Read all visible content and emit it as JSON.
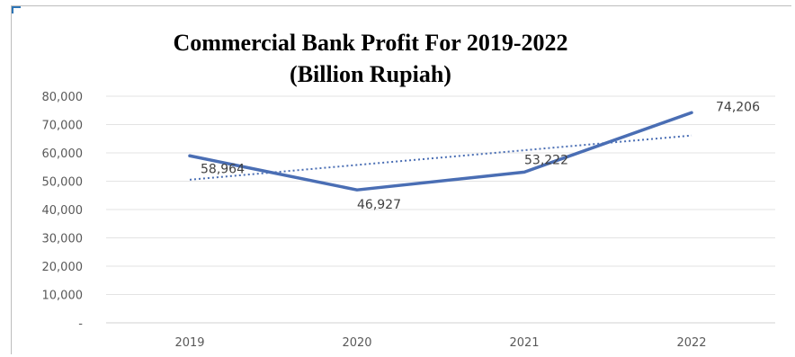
{
  "chart_data": {
    "type": "line",
    "title": "Commercial Bank Profit For 2019-2022",
    "subtitle": "(Billion Rupiah)",
    "categories": [
      "2019",
      "2020",
      "2021",
      "2022"
    ],
    "series": [
      {
        "values": [
          58964,
          46927,
          53222,
          74206
        ],
        "data_labels": [
          "58,964",
          "46,927",
          "53,222",
          "74,206"
        ],
        "color": "#4a6eb4"
      }
    ],
    "trendline": {
      "type": "linear",
      "color": "#4a6eb4",
      "style": "dotted"
    },
    "y_tick_labels": [
      "-",
      "10,000",
      "20,000",
      "30,000",
      "40,000",
      "50,000",
      "60,000",
      "70,000",
      "80,000"
    ],
    "ylim": [
      0,
      80000
    ],
    "grid": true,
    "legend": "none"
  }
}
